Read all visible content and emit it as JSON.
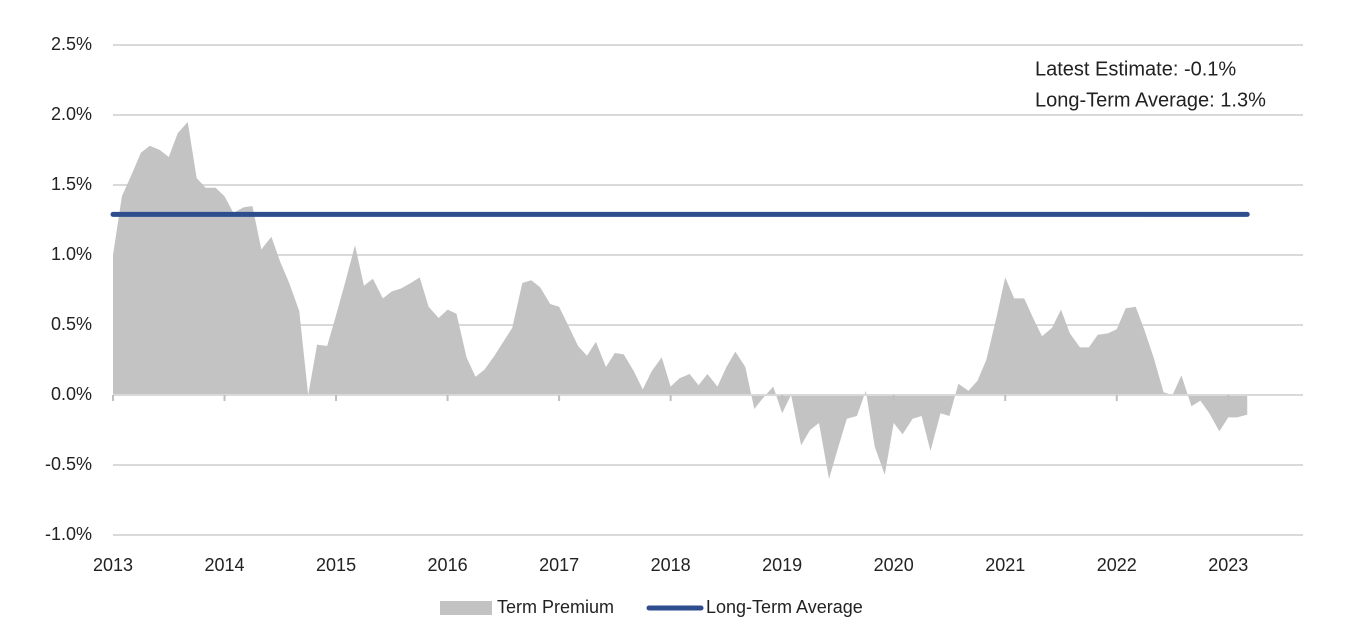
{
  "chart_data": {
    "type": "area",
    "annotations": [
      "Latest Estimate: -0.1%",
      "Long-Term Average: 1.3%"
    ],
    "xlim": [
      2013,
      2023.67
    ],
    "xticks": [
      2013,
      2014,
      2015,
      2016,
      2017,
      2018,
      2019,
      2020,
      2021,
      2022,
      2023
    ],
    "ylim": [
      -1.0,
      2.5
    ],
    "yticks": [
      {
        "value": 2.5,
        "label": "2.5%"
      },
      {
        "value": 2.0,
        "label": "2.0%"
      },
      {
        "value": 1.5,
        "label": "1.5%"
      },
      {
        "value": 1.0,
        "label": "1.0%"
      },
      {
        "value": 0.5,
        "label": "0.5%"
      },
      {
        "value": 0.0,
        "label": "0.0%"
      },
      {
        "value": -0.5,
        "label": "-0.5%"
      },
      {
        "value": -1.0,
        "label": "-1.0%"
      }
    ],
    "grid": true,
    "legend": "bottom",
    "series": [
      {
        "name": "Term Premium",
        "type": "area",
        "color": "#c3c3c3",
        "x": [
          2013.0,
          2013.08,
          2013.17,
          2013.25,
          2013.33,
          2013.42,
          2013.5,
          2013.58,
          2013.67,
          2013.75,
          2013.83,
          2013.92,
          2014.0,
          2014.08,
          2014.17,
          2014.25,
          2014.33,
          2014.42,
          2014.5,
          2014.58,
          2014.67,
          2014.75,
          2014.83,
          2014.92,
          2015.0,
          2015.08,
          2015.17,
          2015.25,
          2015.33,
          2015.42,
          2015.5,
          2015.58,
          2015.67,
          2015.75,
          2015.83,
          2015.92,
          2016.0,
          2016.08,
          2016.17,
          2016.25,
          2016.33,
          2016.42,
          2016.5,
          2016.58,
          2016.67,
          2016.75,
          2016.83,
          2016.92,
          2017.0,
          2017.08,
          2017.17,
          2017.25,
          2017.33,
          2017.42,
          2017.5,
          2017.58,
          2017.67,
          2017.75,
          2017.83,
          2017.92,
          2018.0,
          2018.08,
          2018.17,
          2018.25,
          2018.33,
          2018.42,
          2018.5,
          2018.58,
          2018.67,
          2018.75,
          2018.83,
          2018.92,
          2019.0,
          2019.08,
          2019.17,
          2019.25,
          2019.33,
          2019.42,
          2019.5,
          2019.58,
          2019.67,
          2019.75,
          2019.83,
          2019.92,
          2020.0,
          2020.08,
          2020.17,
          2020.25,
          2020.33,
          2020.42,
          2020.5,
          2020.58,
          2020.67,
          2020.75,
          2020.83,
          2020.92,
          2021.0,
          2021.08,
          2021.17,
          2021.25,
          2021.33,
          2021.42,
          2021.5,
          2021.58,
          2021.67,
          2021.75,
          2021.83,
          2021.92,
          2022.0,
          2022.08,
          2022.17,
          2022.25,
          2022.33,
          2022.42,
          2022.5,
          2022.58,
          2022.67,
          2022.75,
          2022.83,
          2022.92,
          2023.0,
          2023.08,
          2023.17
        ],
        "values": [
          1.0,
          1.42,
          1.58,
          1.73,
          1.78,
          1.75,
          1.7,
          1.87,
          1.95,
          1.55,
          1.48,
          1.48,
          1.42,
          1.3,
          1.34,
          1.35,
          1.04,
          1.13,
          0.95,
          0.8,
          0.6,
          0.0,
          0.36,
          0.35,
          0.57,
          0.8,
          1.07,
          0.78,
          0.83,
          0.69,
          0.74,
          0.76,
          0.8,
          0.84,
          0.63,
          0.55,
          0.61,
          0.58,
          0.27,
          0.13,
          0.18,
          0.28,
          0.38,
          0.48,
          0.8,
          0.82,
          0.77,
          0.65,
          0.63,
          0.5,
          0.35,
          0.28,
          0.38,
          0.2,
          0.3,
          0.29,
          0.17,
          0.04,
          0.17,
          0.27,
          0.06,
          0.12,
          0.15,
          0.07,
          0.15,
          0.06,
          0.2,
          0.31,
          0.2,
          -0.1,
          -0.02,
          0.06,
          -0.13,
          0.0,
          -0.36,
          -0.25,
          -0.2,
          -0.6,
          -0.38,
          -0.17,
          -0.15,
          0.03,
          -0.37,
          -0.57,
          -0.2,
          -0.28,
          -0.17,
          -0.15,
          -0.4,
          -0.13,
          -0.15,
          0.08,
          0.03,
          0.1,
          0.25,
          0.55,
          0.84,
          0.69,
          0.69,
          0.55,
          0.42,
          0.48,
          0.61,
          0.44,
          0.34,
          0.34,
          0.43,
          0.44,
          0.47,
          0.62,
          0.63,
          0.46,
          0.27,
          0.02,
          0.0,
          0.14,
          -0.08,
          -0.04,
          -0.13,
          -0.26,
          -0.16,
          -0.16,
          -0.14
        ]
      },
      {
        "name": "Long-Term Average",
        "type": "line",
        "color": "#2e4d8f",
        "x": [
          2013.0,
          2023.17
        ],
        "values": [
          1.29,
          1.29
        ]
      }
    ]
  }
}
